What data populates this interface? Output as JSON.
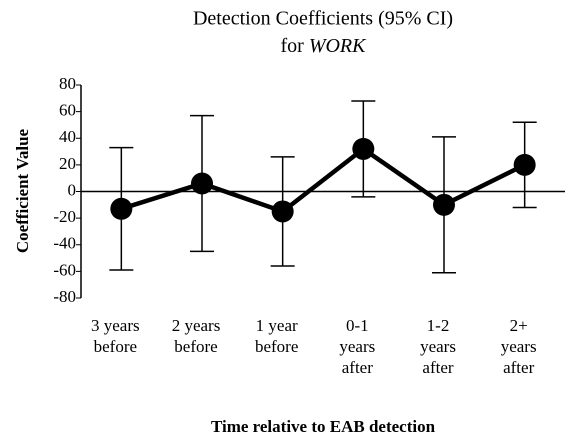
{
  "chart_data": {
    "type": "line",
    "title": "Detection Coefficients (95% CI)",
    "subtitle_parts": [
      "for",
      "WORK"
    ],
    "ylabel": "Coefficient Value",
    "xlabel": "Time relative to EAB detection",
    "categories": [
      [
        "3 years",
        "before"
      ],
      [
        "2 years",
        "before"
      ],
      [
        "1 year",
        "before"
      ],
      [
        "0-1",
        "years",
        "after"
      ],
      [
        "1-2",
        "years",
        "after"
      ],
      [
        "2+",
        "years",
        "after"
      ]
    ],
    "series": [
      {
        "name": "WORK",
        "color": "#000000",
        "values": [
          -13,
          6,
          -15,
          32,
          -10,
          20
        ],
        "errors": [
          46,
          51,
          41,
          36,
          51,
          32
        ]
      }
    ],
    "ylim": [
      -80,
      80
    ],
    "yticks": [
      -80,
      -60,
      -40,
      -20,
      0,
      20,
      40,
      60,
      80
    ],
    "grid": false
  }
}
